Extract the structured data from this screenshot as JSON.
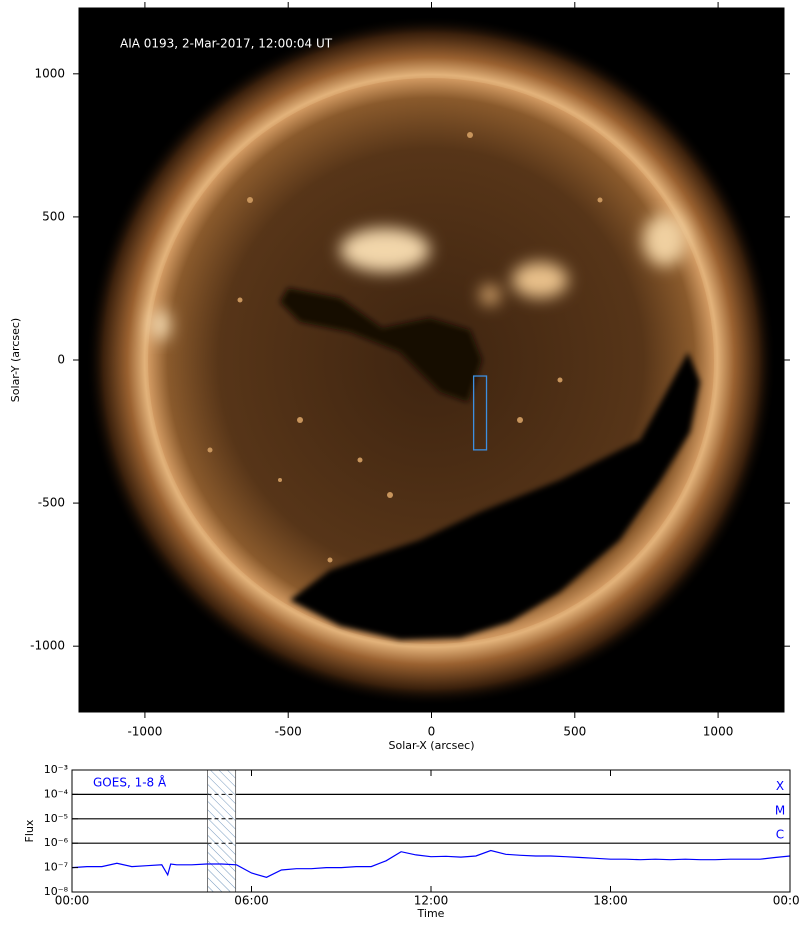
{
  "chart_data": [
    {
      "type": "image",
      "annotation": "AIA 0193, 2-Mar-2017, 12:00:04 UT",
      "x_label": "Solar-X (arcsec)",
      "y_label": "Solar-Y (arcsec)",
      "xlim": [
        -1230,
        1230
      ],
      "ylim": [
        -1230,
        1230
      ],
      "xticks": [
        -1000,
        -500,
        0,
        500,
        1000
      ],
      "yticks": [
        -1000,
        -500,
        0,
        500,
        1000
      ],
      "box": {
        "x": [
          147,
          192
        ],
        "y": [
          -314,
          -56
        ],
        "color": "#3d8fe0"
      }
    },
    {
      "type": "line",
      "x_label": "Time",
      "y_label": "Flux",
      "log_y": true,
      "xlim": [
        0,
        24
      ],
      "ylim": [
        1e-08,
        0.001
      ],
      "xticks": [
        {
          "value": 0,
          "label": "00:00"
        },
        {
          "value": 6,
          "label": "06:00"
        },
        {
          "value": 12,
          "label": "12:00"
        },
        {
          "value": 18,
          "label": "18:00"
        },
        {
          "value": 24,
          "label": "00:00"
        }
      ],
      "yticks": [
        {
          "value": 1e-08,
          "label": "10⁻⁸"
        },
        {
          "value": 1e-07,
          "label": "10⁻⁷"
        },
        {
          "value": 1e-06,
          "label": "10⁻⁶"
        },
        {
          "value": 1e-05,
          "label": "10⁻⁵"
        },
        {
          "value": 0.0001,
          "label": "10⁻⁴"
        },
        {
          "value": 0.001,
          "label": "10⁻³"
        }
      ],
      "levels": [
        {
          "label": "X",
          "value": 0.0001
        },
        {
          "label": "M",
          "value": 1e-05
        },
        {
          "label": "C",
          "value": 1e-06
        }
      ],
      "shaded": [
        4.53,
        5.47
      ],
      "series": [
        {
          "name": "GOES, 1-8 Å",
          "color": "#0000ff",
          "x": [
            0,
            0.5,
            1,
            1.5,
            2,
            2.5,
            3,
            3.2,
            3.3,
            3.5,
            4,
            4.5,
            5,
            5.5,
            6,
            6.5,
            7,
            7.5,
            8,
            8.5,
            9,
            9.5,
            10,
            10.5,
            11,
            11.5,
            12,
            12.5,
            13,
            13.5,
            14,
            14.5,
            15,
            15.5,
            16,
            16.5,
            17,
            17.5,
            18,
            18.5,
            19,
            19.5,
            20,
            20.5,
            21,
            21.5,
            22,
            22.5,
            23,
            23.5,
            24
          ],
          "values": [
            1e-07,
            1.1e-07,
            1.1e-07,
            1.5e-07,
            1.1e-07,
            1.2e-07,
            1.3e-07,
            5e-08,
            1.4e-07,
            1.3e-07,
            1.3e-07,
            1.4e-07,
            1.4e-07,
            1.3e-07,
            6e-08,
            4e-08,
            8e-08,
            9e-08,
            9e-08,
            1e-07,
            1e-07,
            1.1e-07,
            1.1e-07,
            1.9e-07,
            4.5e-07,
            3.3e-07,
            2.8e-07,
            2.9e-07,
            2.7e-07,
            3e-07,
            5e-07,
            3.5e-07,
            3.2e-07,
            3e-07,
            3e-07,
            2.8e-07,
            2.6e-07,
            2.4e-07,
            2.2e-07,
            2.2e-07,
            2.1e-07,
            2.2e-07,
            2.1e-07,
            2.2e-07,
            2.1e-07,
            2.1e-07,
            2.2e-07,
            2.2e-07,
            2.2e-07,
            2.6e-07,
            3e-07
          ]
        }
      ]
    }
  ]
}
